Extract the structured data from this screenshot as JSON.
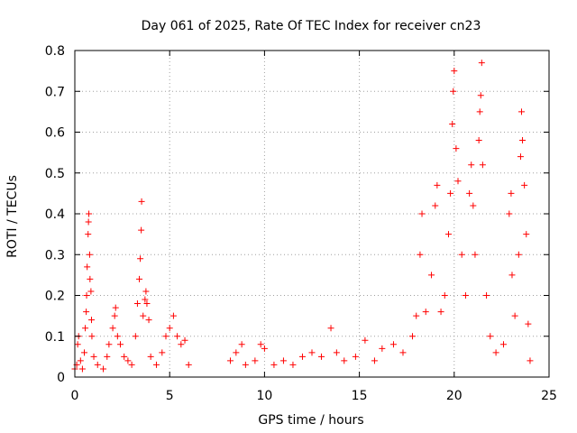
{
  "chart_data": {
    "type": "scatter",
    "title": "Day 061 of 2025, Rate Of TEC Index for receiver cn23",
    "xlabel": "GPS time / hours",
    "ylabel": "ROTI / TECUs",
    "xlim": [
      0,
      25
    ],
    "ylim": [
      0,
      0.8
    ],
    "xticks": [
      0,
      5,
      10,
      15,
      20,
      25
    ],
    "yticks": [
      0,
      0.1,
      0.2,
      0.3,
      0.4,
      0.5,
      0.6,
      0.7,
      0.8
    ],
    "grid": true,
    "marker": "+",
    "color": "#ff0000",
    "points": [
      [
        0.0,
        0.02
      ],
      [
        0.1,
        0.03
      ],
      [
        0.15,
        0.08
      ],
      [
        0.2,
        0.1
      ],
      [
        0.3,
        0.04
      ],
      [
        0.4,
        0.02
      ],
      [
        0.5,
        0.06
      ],
      [
        0.55,
        0.12
      ],
      [
        0.6,
        0.16
      ],
      [
        0.62,
        0.2
      ],
      [
        0.65,
        0.27
      ],
      [
        0.7,
        0.35
      ],
      [
        0.72,
        0.38
      ],
      [
        0.74,
        0.4
      ],
      [
        0.78,
        0.3
      ],
      [
        0.8,
        0.24
      ],
      [
        0.85,
        0.21
      ],
      [
        0.88,
        0.14
      ],
      [
        0.9,
        0.1
      ],
      [
        1.0,
        0.05
      ],
      [
        1.2,
        0.03
      ],
      [
        1.5,
        0.02
      ],
      [
        1.7,
        0.05
      ],
      [
        1.8,
        0.08
      ],
      [
        2.0,
        0.12
      ],
      [
        2.1,
        0.15
      ],
      [
        2.15,
        0.17
      ],
      [
        2.25,
        0.1
      ],
      [
        2.4,
        0.08
      ],
      [
        2.6,
        0.05
      ],
      [
        2.8,
        0.04
      ],
      [
        3.0,
        0.03
      ],
      [
        3.2,
        0.1
      ],
      [
        3.3,
        0.18
      ],
      [
        3.4,
        0.24
      ],
      [
        3.45,
        0.29
      ],
      [
        3.5,
        0.36
      ],
      [
        3.52,
        0.43
      ],
      [
        3.6,
        0.15
      ],
      [
        3.7,
        0.19
      ],
      [
        3.75,
        0.21
      ],
      [
        3.8,
        0.18
      ],
      [
        3.9,
        0.14
      ],
      [
        4.0,
        0.05
      ],
      [
        4.3,
        0.03
      ],
      [
        4.6,
        0.06
      ],
      [
        4.8,
        0.1
      ],
      [
        5.0,
        0.12
      ],
      [
        5.2,
        0.15
      ],
      [
        5.4,
        0.1
      ],
      [
        5.6,
        0.08
      ],
      [
        5.8,
        0.09
      ],
      [
        6.0,
        0.03
      ],
      [
        8.2,
        0.04
      ],
      [
        8.5,
        0.06
      ],
      [
        8.8,
        0.08
      ],
      [
        9.0,
        0.03
      ],
      [
        9.5,
        0.04
      ],
      [
        9.8,
        0.08
      ],
      [
        10.0,
        0.07
      ],
      [
        10.5,
        0.03
      ],
      [
        11.0,
        0.04
      ],
      [
        11.5,
        0.03
      ],
      [
        12.0,
        0.05
      ],
      [
        12.5,
        0.06
      ],
      [
        13.0,
        0.05
      ],
      [
        13.5,
        0.12
      ],
      [
        13.8,
        0.06
      ],
      [
        14.2,
        0.04
      ],
      [
        14.8,
        0.05
      ],
      [
        15.3,
        0.09
      ],
      [
        15.8,
        0.04
      ],
      [
        16.2,
        0.07
      ],
      [
        16.8,
        0.08
      ],
      [
        17.3,
        0.06
      ],
      [
        17.8,
        0.1
      ],
      [
        18.0,
        0.15
      ],
      [
        18.2,
        0.3
      ],
      [
        18.3,
        0.4
      ],
      [
        18.5,
        0.16
      ],
      [
        18.8,
        0.25
      ],
      [
        19.0,
        0.42
      ],
      [
        19.1,
        0.47
      ],
      [
        19.3,
        0.16
      ],
      [
        19.5,
        0.2
      ],
      [
        19.7,
        0.35
      ],
      [
        19.8,
        0.45
      ],
      [
        19.9,
        0.62
      ],
      [
        19.95,
        0.7
      ],
      [
        20.0,
        0.75
      ],
      [
        20.1,
        0.56
      ],
      [
        20.2,
        0.48
      ],
      [
        20.4,
        0.3
      ],
      [
        20.6,
        0.2
      ],
      [
        20.8,
        0.45
      ],
      [
        20.9,
        0.52
      ],
      [
        21.0,
        0.42
      ],
      [
        21.1,
        0.3
      ],
      [
        21.3,
        0.58
      ],
      [
        21.35,
        0.65
      ],
      [
        21.4,
        0.69
      ],
      [
        21.45,
        0.77
      ],
      [
        21.5,
        0.52
      ],
      [
        21.7,
        0.2
      ],
      [
        21.9,
        0.1
      ],
      [
        22.2,
        0.06
      ],
      [
        22.6,
        0.08
      ],
      [
        22.9,
        0.4
      ],
      [
        23.0,
        0.45
      ],
      [
        23.05,
        0.25
      ],
      [
        23.2,
        0.15
      ],
      [
        23.4,
        0.3
      ],
      [
        23.5,
        0.54
      ],
      [
        23.55,
        0.65
      ],
      [
        23.6,
        0.58
      ],
      [
        23.7,
        0.47
      ],
      [
        23.8,
        0.35
      ],
      [
        23.9,
        0.13
      ],
      [
        24.0,
        0.04
      ]
    ]
  }
}
